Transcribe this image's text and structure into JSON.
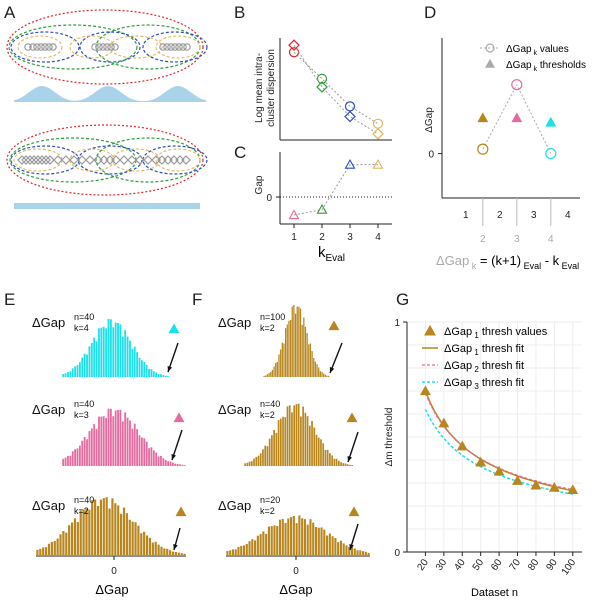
{
  "panels": {
    "A": "A",
    "B": "B",
    "C": "C",
    "D": "D",
    "E": "E",
    "F": "F",
    "G": "G"
  },
  "colors": {
    "red": "#e0262a",
    "green": "#2e9e3a",
    "blue": "#2a4fc0",
    "gold": "#e2b65c",
    "gray": "#9a9a9a",
    "light_blue": "#a9d3ea",
    "cyan": "#19e0ea",
    "pink": "#e66aa0",
    "brown": "#b8861c",
    "lightgray": "#bdbdbd"
  },
  "chart_data": [
    {
      "panel": "B",
      "type": "scatter",
      "ylabel": "Log mean intra-\ncluster dispersion",
      "x": [
        1,
        2,
        3,
        4
      ],
      "series": [
        {
          "marker": "circle",
          "values": [
            8.6,
            6.0,
            3.3,
            1.6
          ]
        },
        {
          "marker": "diamond",
          "values": [
            9.3,
            5.2,
            2.3,
            0.6
          ]
        }
      ],
      "ylim": [
        0,
        10
      ],
      "xlim": [
        0.5,
        4.5
      ]
    },
    {
      "panel": "C",
      "type": "scatter",
      "ylabel": "Gap",
      "xlabel": "k",
      "xlabel_sub": "Eval",
      "x_ticks": [
        "1",
        "2",
        "3",
        "4"
      ],
      "y_ticks": [
        "0"
      ],
      "x": [
        1,
        2,
        3,
        4
      ],
      "values": [
        -1.0,
        -0.7,
        1.8,
        1.8
      ],
      "ylim": [
        -1.5,
        2.5
      ],
      "zero_line": "dotted"
    },
    {
      "panel": "D",
      "type": "scatter",
      "ylabel": "ΔGap",
      "legend": [
        {
          "text": "ΔGap",
          "sub": "k",
          "rest": " values",
          "marker": "circle"
        },
        {
          "text": "ΔGap",
          "sub": "k",
          "rest": " thresholds",
          "marker": "triangle"
        }
      ],
      "x_ticks": [
        "1",
        "2",
        "3",
        "4"
      ],
      "k_labels": [
        "2",
        "3",
        "4"
      ],
      "y_ticks": [
        "0"
      ],
      "values": [
        0.1,
        1.55,
        0.0
      ],
      "thresholds": [
        0.8,
        0.8,
        0.7
      ],
      "ylim": [
        -1,
        2.6
      ],
      "formula": {
        "lhs": "ΔGap",
        "lhs_sub": "k",
        "eq": "=",
        "a": "(k+1)",
        "a_sub": "Eval",
        "b": "- k",
        "b_sub": "Eval"
      }
    },
    {
      "panel": "E",
      "type": "bar",
      "xlabel": "ΔGap",
      "x_ticks": [
        "0"
      ],
      "histograms": [
        {
          "label": "ΔGap",
          "sup": "n=40",
          "sub": "k=4",
          "color": "cyan"
        },
        {
          "label": "ΔGap",
          "sup": "n=40",
          "sub": "k=3",
          "color": "pink"
        },
        {
          "label": "ΔGap",
          "sup": "n=40",
          "sub": "k=2",
          "color": "brown"
        }
      ]
    },
    {
      "panel": "F",
      "type": "bar",
      "xlabel": "ΔGap",
      "x_ticks": [
        "0"
      ],
      "histograms": [
        {
          "label": "ΔGap",
          "sup": "n=100",
          "sub": "k=2",
          "color": "brown"
        },
        {
          "label": "ΔGap",
          "sup": "n=40",
          "sub": "k=2",
          "color": "brown"
        },
        {
          "label": "ΔGap",
          "sup": "n=20",
          "sub": "k=2",
          "color": "brown"
        }
      ]
    },
    {
      "panel": "G",
      "type": "line",
      "xlabel": "Dataset n",
      "ylabel": "Δm threshold",
      "x_ticks": [
        "20",
        "30",
        "40",
        "50",
        "60",
        "70",
        "80",
        "90",
        "100"
      ],
      "y_ticks": [
        "0",
        "1"
      ],
      "ylim": [
        0,
        1
      ],
      "xlim": [
        10,
        105
      ],
      "grid": true,
      "legend_position": "top-right",
      "series": [
        {
          "name": "ΔGap",
          "sub": "1",
          "rest": " thresh values",
          "style": "triangle",
          "x": [
            20,
            30,
            40,
            50,
            60,
            70,
            80,
            90,
            100
          ],
          "values": [
            0.7,
            0.56,
            0.46,
            0.39,
            0.35,
            0.31,
            0.29,
            0.28,
            0.27
          ]
        },
        {
          "name": "ΔGap",
          "sub": "1",
          "rest": " thresh fit",
          "style": "solid"
        },
        {
          "name": "ΔGap",
          "sub": "2",
          "rest": " thresh fit",
          "style": "dotted-pink"
        },
        {
          "name": "ΔGap",
          "sub": "3",
          "rest": " thresh fit",
          "style": "dotted-cyan"
        }
      ]
    }
  ]
}
